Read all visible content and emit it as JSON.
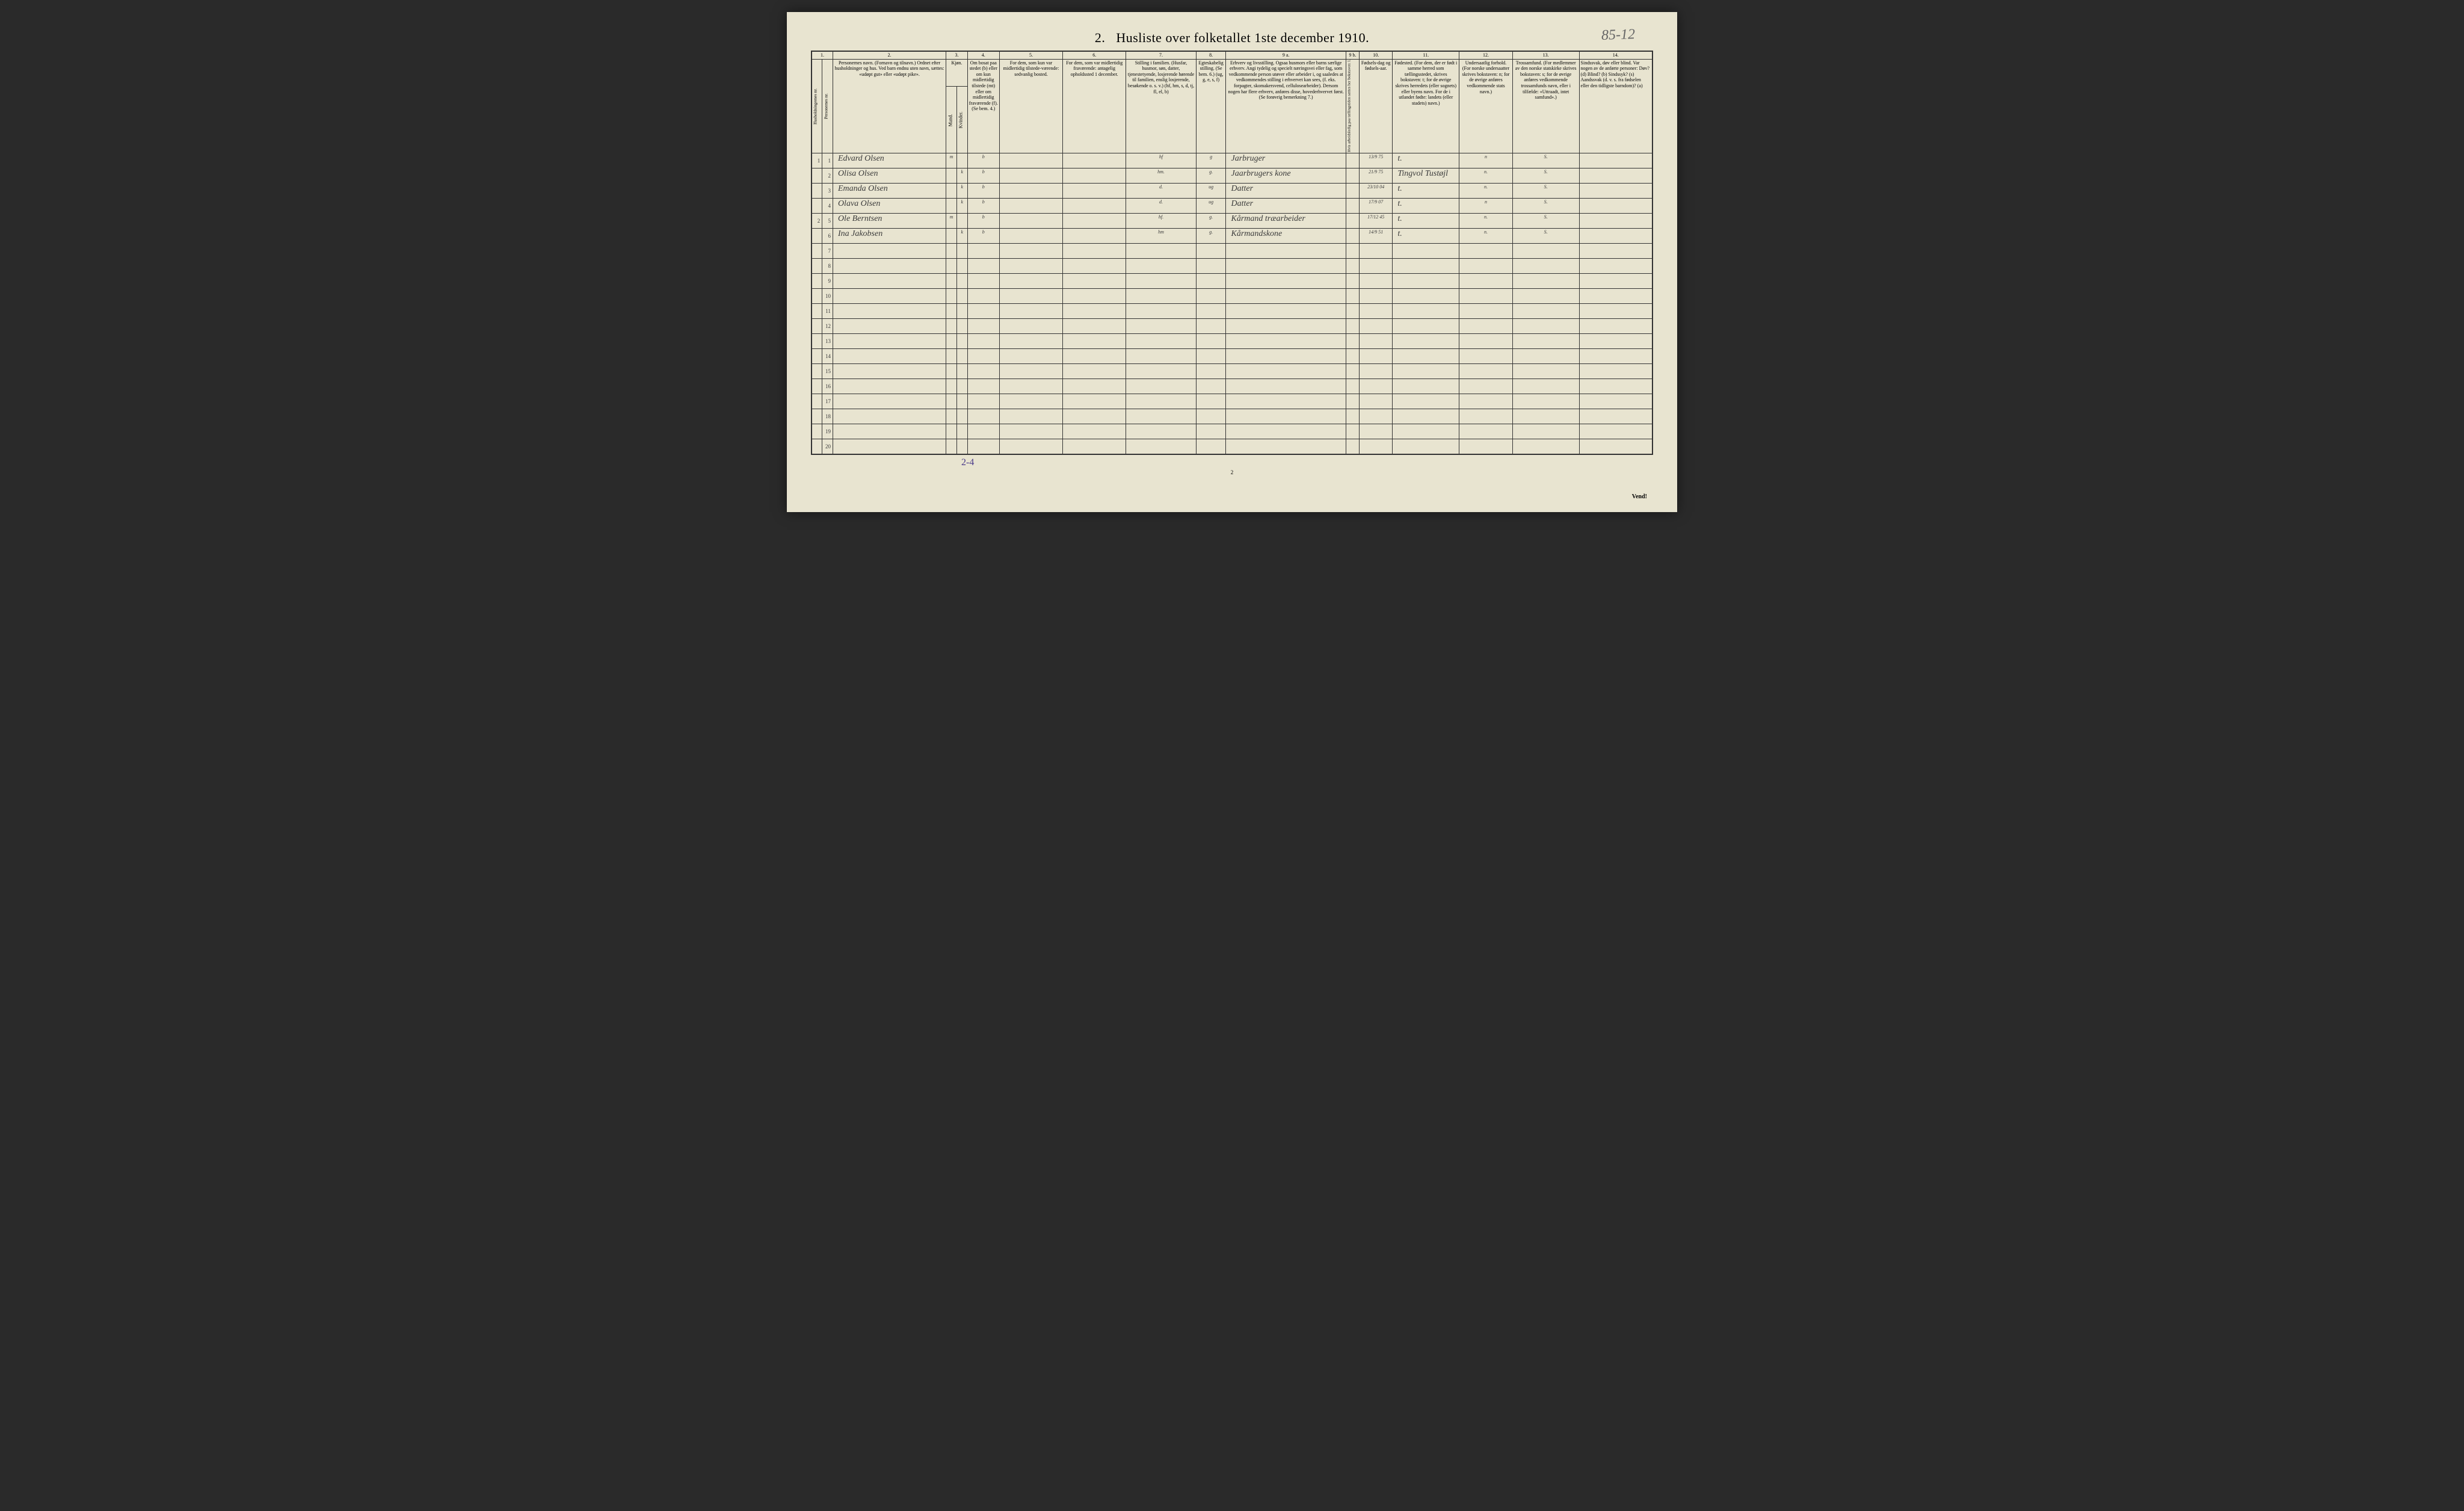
{
  "title_prefix": "2.",
  "title": "Husliste over folketallet 1ste december 1910.",
  "handwritten_topright": "85-12",
  "bottom_handwritten": "2-4",
  "page_number": "2",
  "vend": "Vend!",
  "col_numbers": [
    "1.",
    "2.",
    "3.",
    "4.",
    "5.",
    "6.",
    "7.",
    "8.",
    "9 a.",
    "9 b.",
    "10.",
    "11.",
    "12.",
    "13.",
    "14."
  ],
  "headers": {
    "c1a": "Husholdningernes nr.",
    "c1b": "Personernes nr.",
    "c2": "Personernes navn.\n(Fornavn og tilnavn.)\nOrdnet efter husholdninger og hus.\nVed barn endnu uten navn, sættes: «udøpt gut» eller «udøpt pike».",
    "c3": "Kjøn.",
    "c3a": "Mand.",
    "c3b": "Kvinder.",
    "c3sub": "m.  k.",
    "c4": "Om bosat paa stedet (b) eller om kun midlertidig tilstede (mt) eller om midlertidig fraværende (f).\n(Se bem. 4.)",
    "c5": "For dem, som kun var midlertidig tilstede-værende:\nsedvanlig bosted.",
    "c6": "For dem, som var midlertidig fraværende:\nantagelig opholdssted 1 december.",
    "c7": "Stilling i familien.\n(Husfar, husmor, søn, datter, tjenestetyende, losjerende hørende til familien, enslig losjerende, besøkende o. s. v.)\n(hf, hm, s, d, tj, fl, el, b)",
    "c8": "Egteskabelig stilling.\n(Se bem. 6.)\n(ug, g, e, s, f)",
    "c9a": "Erhverv og livsstilling.\nOgsaa husmors eller barns særlige erhverv.\nAngi tydelig og specielt næringsvei eller fag, som vedkommende person utøver eller arbeider i, og saaledes at vedkommendes stilling i erhvervet kan sees, (f. eks. forpagter, skomakersvend, cellulosearbeider). Dersom nogen har flere erhverv, anføres disse, hovederhvervet først.\n(Se forøvrig bemerkning 7.)",
    "c9b": "Hvis arbeidsledig paa tællingstiden sættes her bokstaven: l.",
    "c10": "Fødsels-dag og fødsels-aar.",
    "c11": "Fødested.\n(For dem, der er født i samme herred som tællingsstedet, skrives bokstaven: t; for de øvrige skrives herredets (eller sognets) eller byens navn. For de i utlandet fødte: landets (eller stadets) navn.)",
    "c12": "Undersaatlig forhold.\n(For norske undersaatter skrives bokstaven: n; for de øvrige anføres vedkommende stats navn.)",
    "c13": "Trossamfund.\n(For medlemmer av den norske statskirke skrives bokstaven: s; for de øvrige anføres vedkommende trossamfunds navn, eller i tilfælde: «Uttraadt, intet samfund».)",
    "c14": "Sindssvak, døv eller blind.\nVar nogen av de anførte personer:\nDøv?        (d)\nBlind?      (b)\nSindssyk?  (s)\nAandssvak (d. v. s. fra fødselen eller den tidligste barndom)? (a)"
  },
  "colwidths": {
    "c1a": 16,
    "c1b": 16,
    "c2": 170,
    "c3a": 16,
    "c3b": 16,
    "c4": 48,
    "c5": 95,
    "c6": 95,
    "c7": 105,
    "c8": 45,
    "c9a": 180,
    "c9b": 20,
    "c10": 50,
    "c11": 100,
    "c12": 80,
    "c13": 100,
    "c14": 110
  },
  "rows": [
    {
      "hh": "1",
      "pn": "1",
      "name": "Edvard Olsen",
      "m": "m",
      "k": "",
      "bos": "b",
      "c5": "",
      "c6": "",
      "fam": "hf",
      "egte": "g",
      "erhv": "Jarbruger",
      "c9b": "",
      "dob": "13/9 75",
      "fsted": "t.",
      "us": "n",
      "tro": "S.",
      "c14": ""
    },
    {
      "hh": "",
      "pn": "2",
      "name": "Olisa Olsen",
      "m": "",
      "k": "k",
      "bos": "b",
      "c5": "",
      "c6": "",
      "fam": "hm.",
      "egte": "g.",
      "erhv": "Jaarbrugers kone",
      "c9b": "",
      "dob": "21/9 75",
      "fsted": "Tingvol Tustøjl",
      "us": "n.",
      "tro": "S.",
      "c14": ""
    },
    {
      "hh": "",
      "pn": "3",
      "name": "Emanda Olsen",
      "m": "",
      "k": "k",
      "bos": "b",
      "c5": "",
      "c6": "",
      "fam": "d.",
      "egte": "ug",
      "erhv": "Datter",
      "c9b": "",
      "dob": "23/10 04",
      "fsted": "t.",
      "us": "n.",
      "tro": "S.",
      "c14": ""
    },
    {
      "hh": "",
      "pn": "4",
      "name": "Olava Olsen",
      "m": "",
      "k": "k",
      "bos": "b",
      "c5": "",
      "c6": "",
      "fam": "d.",
      "egte": "ug",
      "erhv": "Datter",
      "c9b": "",
      "dob": "17/9 07",
      "fsted": "t.",
      "us": "n",
      "tro": "S.",
      "c14": ""
    },
    {
      "hh": "2",
      "pn": "5",
      "name": "Ole Berntsen",
      "m": "m",
      "k": "",
      "bos": "b",
      "c5": "",
      "c6": "",
      "fam": "hf.",
      "egte": "g.",
      "erhv": "Kårmand træarbeider",
      "c9b": "",
      "dob": "17/12 45",
      "fsted": "t.",
      "us": "n.",
      "tro": "S.",
      "c14": ""
    },
    {
      "hh": "",
      "pn": "6",
      "name": "Ina Jakobsen",
      "m": "",
      "k": "k",
      "bos": "b",
      "c5": "",
      "c6": "",
      "fam": "hm",
      "egte": "g.",
      "erhv": "Kårmandskone",
      "c9b": "",
      "dob": "14/9 51",
      "fsted": "t.",
      "us": "n.",
      "tro": "S.",
      "c14": ""
    }
  ],
  "empty_row_count": 14,
  "colors": {
    "paper": "#e8e4d0",
    "ink": "#333333",
    "handwriting": "#3a3a3a",
    "pencil_note": "#4a3a8a"
  }
}
